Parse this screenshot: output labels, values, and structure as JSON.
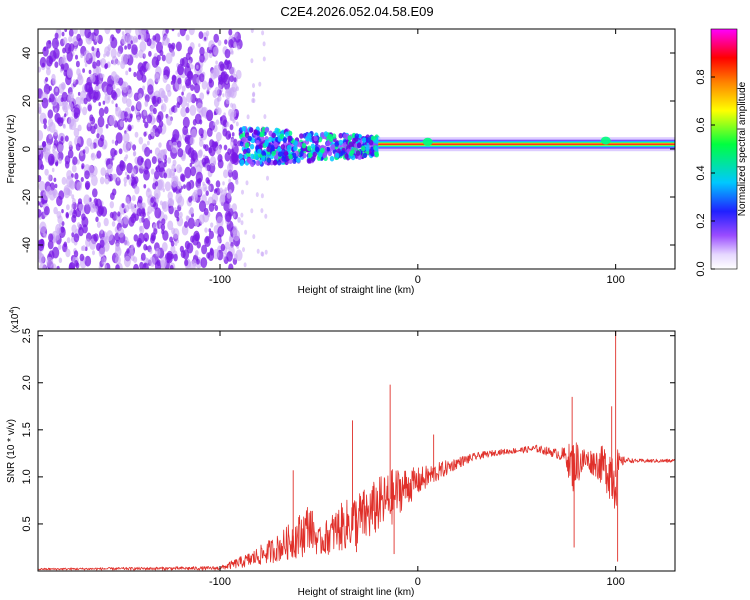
{
  "title": "C2E4.2026.052.04.58.E09",
  "colors": {
    "line": "#e0302a",
    "axis": "#000000",
    "speckle": "#7a1ae6",
    "speckle_light": "#c9a6f5",
    "background": "#ffffff"
  },
  "chart_data": [
    {
      "type": "heatmap",
      "name": "spectrogram",
      "xlabel": "Height of straight line (km)",
      "ylabel": "Frequency (Hz)",
      "xlim": [
        -192,
        130
      ],
      "ylim": [
        -50,
        50
      ],
      "xticks": [
        -100,
        0,
        100
      ],
      "yticks": [
        -40,
        -20,
        0,
        20,
        40
      ],
      "colorbar": {
        "label": "Normalized spectral amplitude",
        "range": [
          0,
          1
        ],
        "ticks": [
          "0.0",
          "0.2",
          "0.4",
          "0.6",
          "0.8"
        ],
        "tick_values": [
          0,
          0.2,
          0.4,
          0.6,
          0.8
        ],
        "colormap": [
          "#ffffff",
          "#9a4cff",
          "#2020ff",
          "#00c8ff",
          "#00ff40",
          "#ffff00",
          "#ff8000",
          "#ff0000",
          "#ff00ff"
        ]
      },
      "features": {
        "noise_region_x": [
          -192,
          -90
        ],
        "transition_region_x": [
          -90,
          -20
        ],
        "carrier_freq_hz": 2,
        "carrier_x": [
          -20,
          130
        ]
      }
    },
    {
      "type": "line",
      "name": "snr",
      "xlabel": "Height of straight line (km)",
      "ylabel": "SNR (10 * v/v)",
      "multiplier_label": "(x10",
      "multiplier_exp": "4",
      "xlim": [
        -192,
        130
      ],
      "ylim": [
        0,
        2.55
      ],
      "xticks": [
        -100,
        0,
        100
      ],
      "yticks": [
        0.5,
        1.0,
        1.5,
        2.0,
        2.5
      ],
      "ytick_labels": [
        "0.5",
        "1.0",
        "1.5",
        "2.0",
        "2.5"
      ],
      "series": [
        {
          "name": "SNR",
          "anchors": {
            "x": [
              -192,
              -100,
              -85,
              -70,
              -58,
              -55,
              -50,
              -40,
              -30,
              -25,
              -20,
              -15,
              -12,
              -10,
              -5,
              0,
              10,
              20,
              30,
              40,
              50,
              60,
              70,
              75,
              78,
              80,
              85,
              90,
              95,
              98,
              100,
              102,
              105,
              110,
              120,
              130
            ],
            "y": [
              0.02,
              0.03,
              0.12,
              0.25,
              0.4,
              0.5,
              0.3,
              0.45,
              0.55,
              0.6,
              0.7,
              0.75,
              0.8,
              0.85,
              0.9,
              0.95,
              1.05,
              1.15,
              1.22,
              1.26,
              1.28,
              1.3,
              1.25,
              1.22,
              1.1,
              1.15,
              1.18,
              1.15,
              1.1,
              1.05,
              1.0,
              1.15,
              1.18,
              1.17,
              1.17,
              1.17
            ],
            "noise": [
              0.01,
              0.02,
              0.08,
              0.15,
              0.25,
              0.25,
              0.15,
              0.25,
              0.3,
              0.3,
              0.3,
              0.3,
              0.3,
              0.25,
              0.2,
              0.15,
              0.1,
              0.06,
              0.04,
              0.03,
              0.03,
              0.04,
              0.05,
              0.1,
              0.3,
              0.25,
              0.12,
              0.15,
              0.25,
              0.35,
              0.4,
              0.08,
              0.03,
              0.02,
              0.02,
              0.02
            ]
          },
          "spikes": [
            {
              "x": -63,
              "y": 1.07
            },
            {
              "x": -33,
              "y": 1.6
            },
            {
              "x": -31,
              "y": 0.2
            },
            {
              "x": -14,
              "y": 1.98
            },
            {
              "x": -12,
              "y": 0.18
            },
            {
              "x": 8,
              "y": 1.45
            },
            {
              "x": 78,
              "y": 1.85
            },
            {
              "x": 79,
              "y": 0.25
            },
            {
              "x": 98,
              "y": 1.75
            },
            {
              "x": 100,
              "y": 2.55
            },
            {
              "x": 101,
              "y": 0.1
            }
          ]
        }
      ]
    }
  ]
}
